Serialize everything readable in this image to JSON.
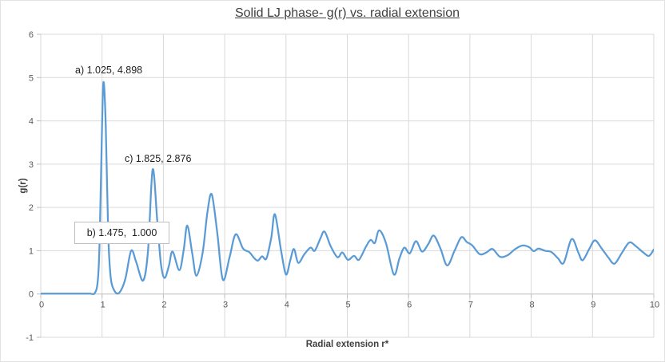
{
  "title": "Solid LJ phase- g(r) vs. radial extension",
  "axes": {
    "x_label": "Radial extension r*",
    "y_label": "g(r)",
    "x_ticks": [
      0,
      1,
      2,
      3,
      4,
      5,
      6,
      7,
      8,
      9,
      10
    ],
    "y_ticks": [
      -1,
      0,
      1,
      2,
      3,
      4,
      5,
      6
    ]
  },
  "annotations": {
    "a": "a) 1.025, 4.898",
    "b": "b) 1.475,  1.000",
    "c": "c) 1.825, 2.876"
  },
  "colors": {
    "line": "#5B9BD5",
    "grid": "#D9D9D9",
    "axis_line": "#C6C6C6",
    "tick": "#BFBFBF",
    "axis_text": "#595959",
    "title_text": "#404040",
    "annotation_text": "#1F1F1F",
    "box_border": "#BFBFBF"
  },
  "chart_data": {
    "type": "line",
    "title": "Solid LJ phase- g(r) vs. radial extension",
    "xlabel": "Radial extension r*",
    "ylabel": "g(r)",
    "xlim": [
      0,
      10
    ],
    "ylim": [
      -1,
      6
    ],
    "grid": true,
    "legend": false,
    "labeled_points": [
      {
        "label": "a",
        "x": 1.025,
        "y": 4.898
      },
      {
        "label": "b",
        "x": 1.475,
        "y": 1.0
      },
      {
        "label": "c",
        "x": 1.825,
        "y": 2.876
      }
    ],
    "series": [
      {
        "name": "g(r)",
        "points": [
          [
            0,
            0.01
          ],
          [
            0.3,
            0.01
          ],
          [
            0.6,
            0.01
          ],
          [
            0.8,
            0.01
          ],
          [
            0.88,
            0.02
          ],
          [
            0.93,
            0.3
          ],
          [
            0.96,
            1.2
          ],
          [
            1.0,
            3.9
          ],
          [
            1.025,
            4.898
          ],
          [
            1.06,
            3.9
          ],
          [
            1.1,
            1.4
          ],
          [
            1.14,
            0.4
          ],
          [
            1.2,
            0.08
          ],
          [
            1.28,
            0.03
          ],
          [
            1.38,
            0.35
          ],
          [
            1.475,
            1.0
          ],
          [
            1.56,
            0.72
          ],
          [
            1.67,
            0.31
          ],
          [
            1.75,
            1.0
          ],
          [
            1.825,
            2.876
          ],
          [
            1.9,
            1.7
          ],
          [
            1.96,
            0.7
          ],
          [
            2.02,
            0.37
          ],
          [
            2.09,
            0.65
          ],
          [
            2.15,
            0.98
          ],
          [
            2.26,
            0.55
          ],
          [
            2.33,
            1.0
          ],
          [
            2.39,
            1.58
          ],
          [
            2.47,
            0.95
          ],
          [
            2.54,
            0.42
          ],
          [
            2.64,
            0.95
          ],
          [
            2.72,
            1.9
          ],
          [
            2.79,
            2.3
          ],
          [
            2.88,
            1.4
          ],
          [
            2.97,
            0.33
          ],
          [
            3.08,
            0.85
          ],
          [
            3.18,
            1.38
          ],
          [
            3.3,
            1.05
          ],
          [
            3.4,
            0.97
          ],
          [
            3.47,
            0.85
          ],
          [
            3.54,
            0.77
          ],
          [
            3.61,
            0.87
          ],
          [
            3.68,
            0.82
          ],
          [
            3.76,
            1.3
          ],
          [
            3.82,
            1.84
          ],
          [
            3.92,
            1.0
          ],
          [
            4.0,
            0.45
          ],
          [
            4.07,
            0.78
          ],
          [
            4.13,
            1.04
          ],
          [
            4.2,
            0.72
          ],
          [
            4.3,
            0.92
          ],
          [
            4.4,
            1.07
          ],
          [
            4.47,
            1.0
          ],
          [
            4.56,
            1.28
          ],
          [
            4.63,
            1.44
          ],
          [
            4.73,
            1.1
          ],
          [
            4.84,
            0.85
          ],
          [
            4.92,
            0.96
          ],
          [
            5.01,
            0.79
          ],
          [
            5.11,
            0.88
          ],
          [
            5.19,
            0.79
          ],
          [
            5.3,
            1.08
          ],
          [
            5.38,
            1.25
          ],
          [
            5.45,
            1.18
          ],
          [
            5.52,
            1.47
          ],
          [
            5.63,
            1.18
          ],
          [
            5.76,
            0.45
          ],
          [
            5.85,
            0.82
          ],
          [
            5.93,
            1.07
          ],
          [
            6.02,
            0.94
          ],
          [
            6.12,
            1.22
          ],
          [
            6.22,
            0.98
          ],
          [
            6.32,
            1.15
          ],
          [
            6.41,
            1.35
          ],
          [
            6.52,
            1.05
          ],
          [
            6.63,
            0.66
          ],
          [
            6.75,
            1.0
          ],
          [
            6.86,
            1.31
          ],
          [
            6.95,
            1.2
          ],
          [
            7.04,
            1.12
          ],
          [
            7.16,
            0.92
          ],
          [
            7.27,
            0.96
          ],
          [
            7.37,
            1.04
          ],
          [
            7.49,
            0.86
          ],
          [
            7.62,
            0.9
          ],
          [
            7.74,
            1.04
          ],
          [
            7.86,
            1.12
          ],
          [
            7.97,
            1.08
          ],
          [
            8.04,
            0.99
          ],
          [
            8.12,
            1.05
          ],
          [
            8.22,
            1.0
          ],
          [
            8.33,
            0.97
          ],
          [
            8.44,
            0.82
          ],
          [
            8.53,
            0.72
          ],
          [
            8.66,
            1.27
          ],
          [
            8.77,
            0.95
          ],
          [
            8.84,
            0.78
          ],
          [
            8.95,
            1.05
          ],
          [
            9.04,
            1.24
          ],
          [
            9.15,
            1.05
          ],
          [
            9.26,
            0.84
          ],
          [
            9.36,
            0.7
          ],
          [
            9.48,
            0.95
          ],
          [
            9.6,
            1.19
          ],
          [
            9.71,
            1.1
          ],
          [
            9.82,
            0.97
          ],
          [
            9.92,
            0.88
          ],
          [
            10,
            1.03
          ]
        ]
      }
    ]
  }
}
